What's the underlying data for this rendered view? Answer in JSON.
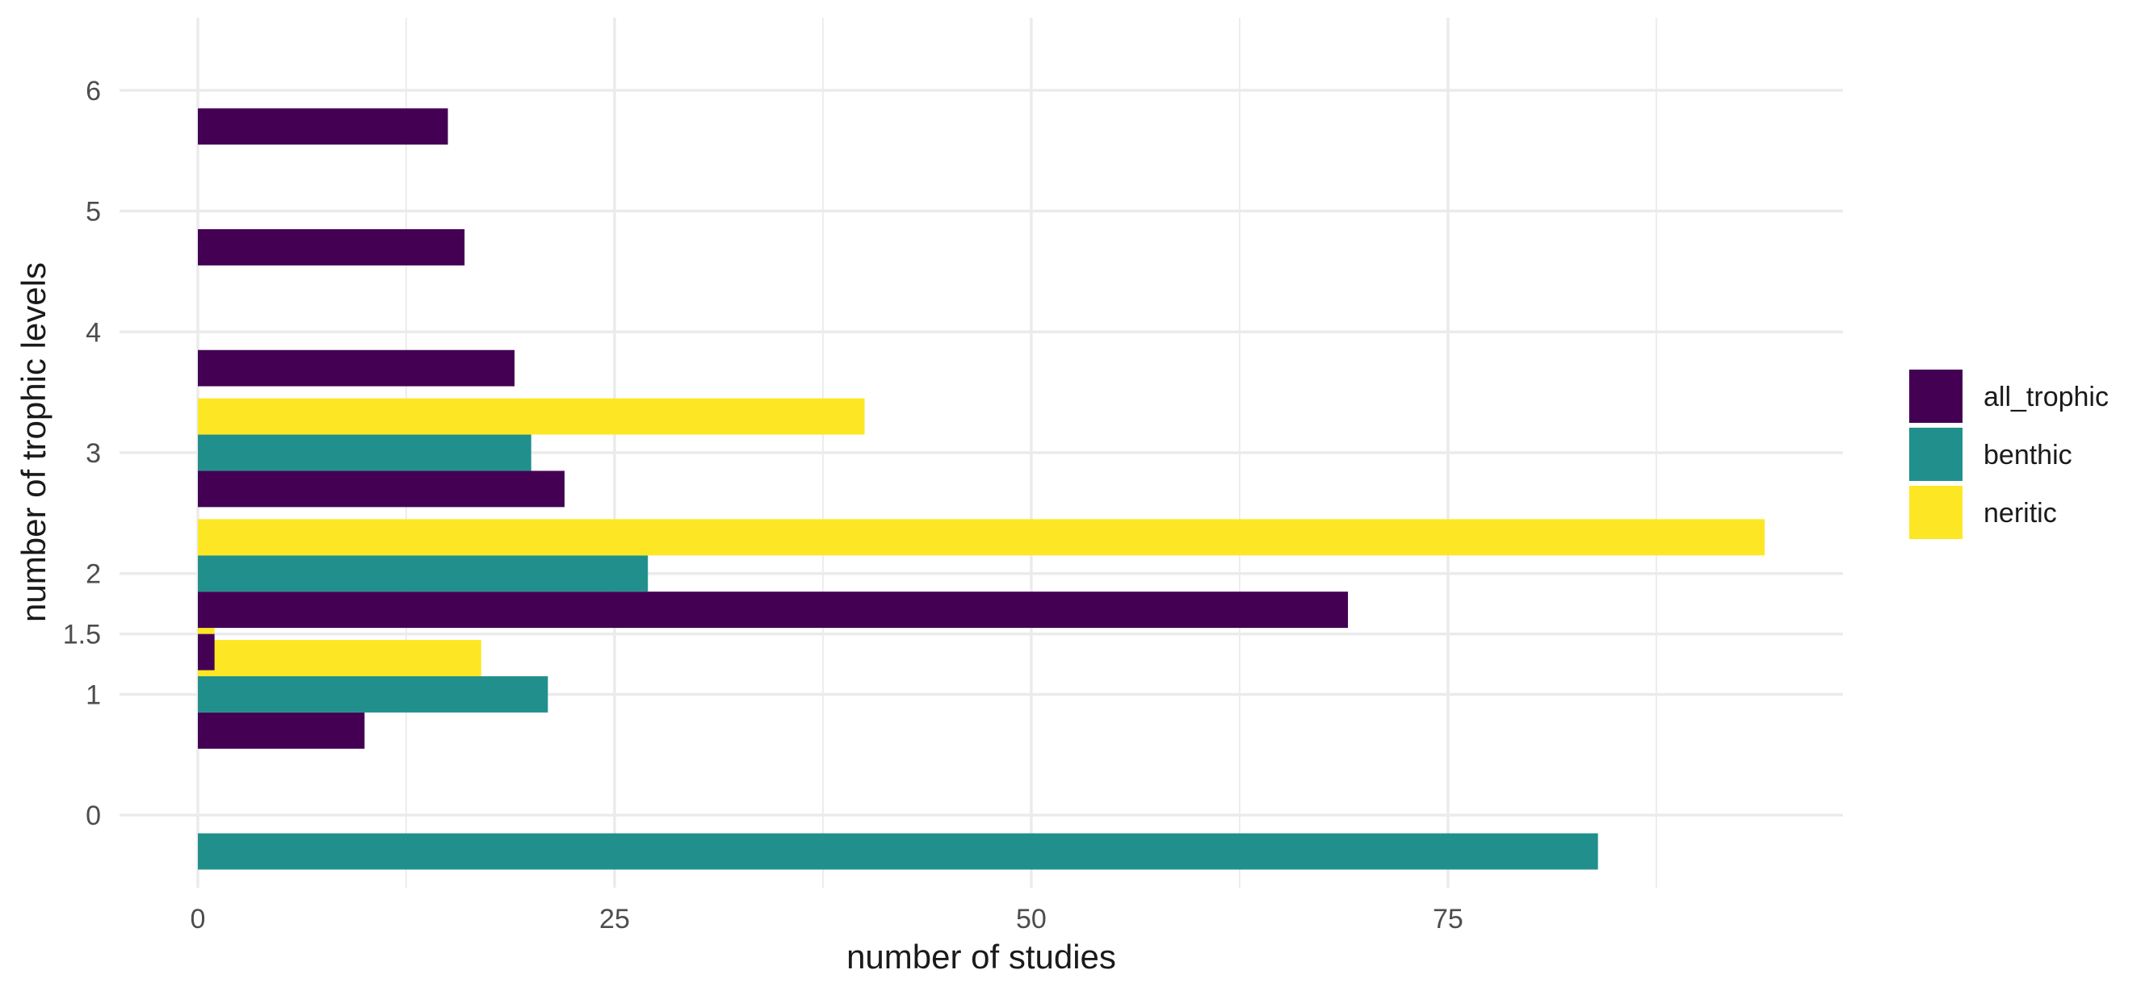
{
  "chart_data": {
    "type": "bar",
    "orientation": "horizontal",
    "title": "",
    "xlabel": "number of studies",
    "ylabel": "number of trophic levels",
    "categories": [
      "0",
      "1",
      "1.5",
      "2",
      "3",
      "4",
      "5",
      "6"
    ],
    "series": [
      {
        "name": "all_trophic",
        "color": "#440154",
        "values": [
          0,
          10,
          1,
          69,
          22,
          19,
          16,
          15
        ]
      },
      {
        "name": "benthic",
        "color": "#21908C",
        "values": [
          84,
          21,
          0,
          27,
          20,
          0,
          0,
          0
        ]
      },
      {
        "name": "neritic",
        "color": "#FDE725",
        "values": [
          0,
          17,
          1,
          94,
          40,
          0,
          0,
          0
        ]
      }
    ],
    "xlim": [
      -4.7,
      98.7
    ],
    "xticks": [
      0,
      25,
      50,
      75
    ],
    "y_ticks": [
      {
        "label": "0",
        "value": 0
      },
      {
        "label": "1",
        "value": 1
      },
      {
        "label": "1.5",
        "value": 1.5
      },
      {
        "label": "2",
        "value": 2
      },
      {
        "label": "3",
        "value": 3
      },
      {
        "label": "4",
        "value": 4
      },
      {
        "label": "5",
        "value": 5
      },
      {
        "label": "6",
        "value": 6
      }
    ],
    "ylim": [
      -0.6,
      6.6
    ],
    "bar_width": 0.9,
    "bar_groups": [
      {
        "series": "benthic",
        "y": -0.3,
        "value": 84
      },
      {
        "series": "all_trophic",
        "y": 0.7,
        "value": 10
      },
      {
        "series": "benthic",
        "y": 1.0,
        "value": 21
      },
      {
        "series": "neritic",
        "y": 1.3,
        "value": 17
      },
      {
        "series": "all_trophic",
        "y": 1.35,
        "value": 1
      },
      {
        "series": "neritic",
        "y": 1.65,
        "value": 1
      },
      {
        "series": "all_trophic",
        "y": 1.7,
        "value": 69
      },
      {
        "series": "benthic",
        "y": 2.0,
        "value": 27
      },
      {
        "series": "neritic",
        "y": 2.3,
        "value": 94
      },
      {
        "series": "all_trophic",
        "y": 2.7,
        "value": 22
      },
      {
        "series": "benthic",
        "y": 3.0,
        "value": 20
      },
      {
        "series": "neritic",
        "y": 3.3,
        "value": 40
      },
      {
        "series": "all_trophic",
        "y": 3.7,
        "value": 19
      },
      {
        "series": "all_trophic",
        "y": 4.7,
        "value": 16
      },
      {
        "series": "all_trophic",
        "y": 5.7,
        "value": 15
      }
    ],
    "grid": true,
    "legend_position": "right",
    "legend": [
      "all_trophic",
      "benthic",
      "neritic"
    ]
  }
}
